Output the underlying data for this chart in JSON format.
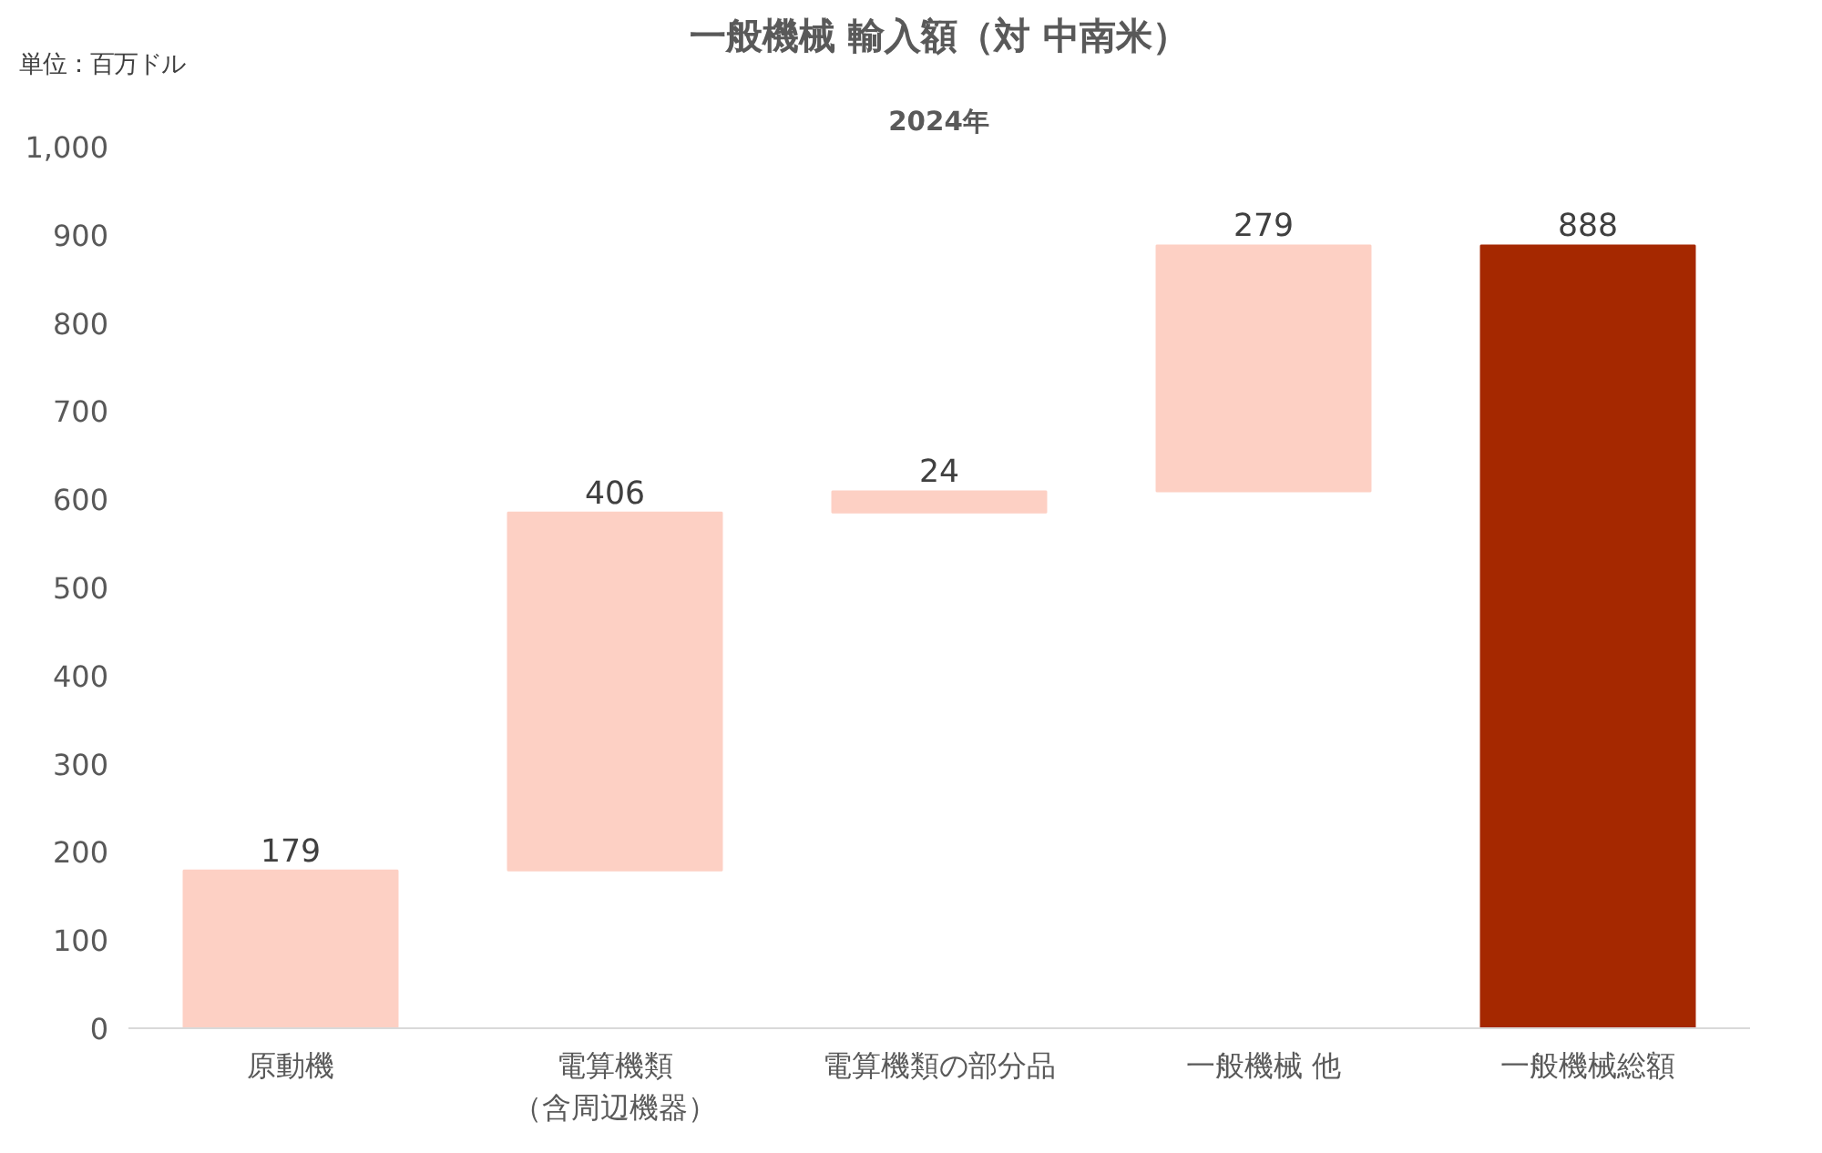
{
  "chart_data": {
    "type": "bar",
    "title": "一般機械 輸入額（対 中南米）",
    "subtitle": "2024年",
    "annotations": [
      "単位：百万ドル"
    ],
    "categories": [
      "原動機",
      "電算機類（含周辺機器）",
      "電算機類の部分品",
      "一般機械 他",
      "一般機械総額"
    ],
    "values": [
      179,
      406,
      24,
      279,
      888
    ],
    "base": [
      0,
      179,
      585,
      609,
      0
    ],
    "colors": [
      "#fdd0c4",
      "#fdd0c4",
      "#fdd0c4",
      "#fdd0c4",
      "#a52800"
    ],
    "ylim": [
      0,
      1000
    ],
    "yticks": [
      0,
      100,
      200,
      300,
      400,
      500,
      600,
      700,
      800,
      {
        "value": 900,
        "label": "900"
      },
      {
        "value": 1000,
        "label": "1,000"
      }
    ],
    "data_labels": true,
    "grid": false
  }
}
